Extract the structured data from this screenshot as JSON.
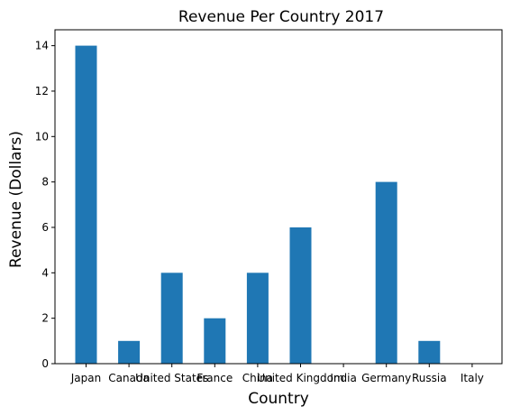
{
  "chart_data": {
    "type": "bar",
    "title": "Revenue Per Country 2017",
    "xlabel": "Country",
    "ylabel": "Revenue (Dollars)",
    "categories": [
      "Japan",
      "Canada",
      "United States",
      "France",
      "China",
      "United Kingdom",
      "India",
      "Germany",
      "Russia",
      "Italy"
    ],
    "values": [
      14,
      1,
      4,
      2,
      4,
      6,
      0,
      8,
      1,
      0
    ],
    "ylim": [
      0,
      14.7
    ],
    "yticks": [
      0,
      2,
      4,
      6,
      8,
      10,
      12,
      14
    ],
    "grid": false,
    "bar_color": "#1f77b4"
  }
}
